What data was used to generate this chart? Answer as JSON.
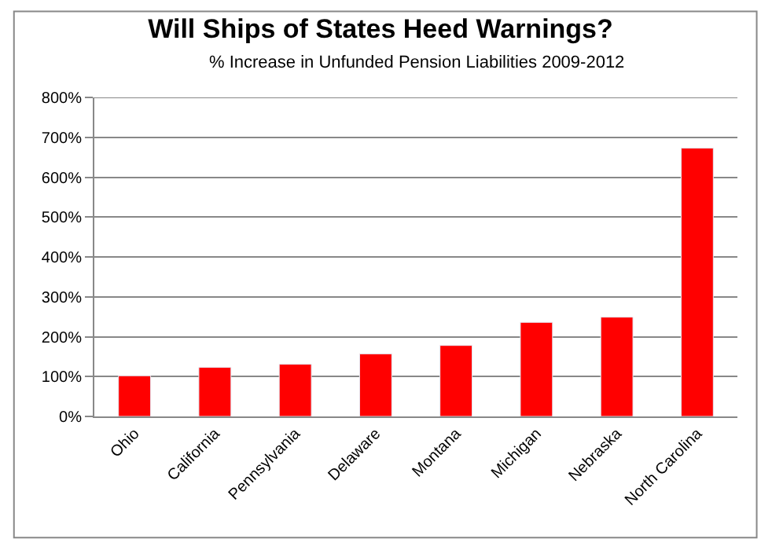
{
  "chart_data": {
    "type": "bar",
    "title": "Will Ships of States Heed Warnings?",
    "subtitle": "% Increase in Unfunded Pension Liabilities 2009-2012",
    "categories": [
      "Ohio",
      "California",
      "Pennsylvania",
      "Delaware",
      "Montana",
      "Michigan",
      "Nebraska",
      "North Carolina"
    ],
    "values": [
      102,
      123,
      131,
      157,
      178,
      236,
      249,
      673
    ],
    "color": "#ff0000",
    "ylim": [
      0,
      800
    ],
    "yticks": [
      {
        "value": 0,
        "label": "0%"
      },
      {
        "value": 100,
        "label": "100%"
      },
      {
        "value": 200,
        "label": "200%"
      },
      {
        "value": 300,
        "label": "300%"
      },
      {
        "value": 400,
        "label": "400%"
      },
      {
        "value": 500,
        "label": "500%"
      },
      {
        "value": 600,
        "label": "600%"
      },
      {
        "value": 700,
        "label": "700%"
      },
      {
        "value": 800,
        "label": "800%"
      }
    ],
    "grid": "y"
  }
}
